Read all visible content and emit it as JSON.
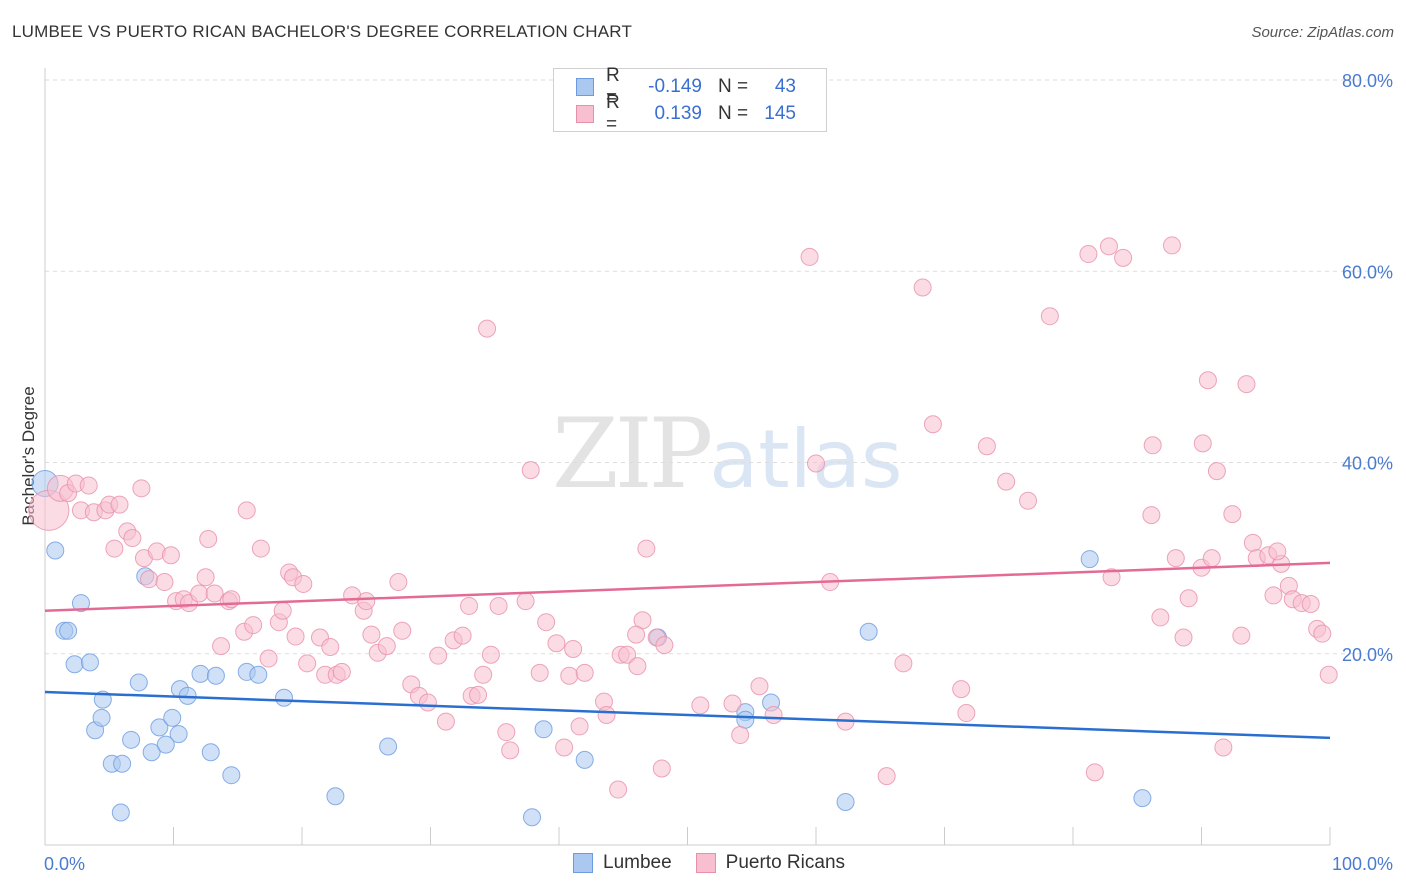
{
  "title": "LUMBEE VS PUERTO RICAN BACHELOR'S DEGREE CORRELATION CHART",
  "source": "Source: ZipAtlas.com",
  "watermark": {
    "zip": "ZIP",
    "atlas": "atlas"
  },
  "legend_top": {
    "rows": [
      {
        "r_label": "R =",
        "r_value": "-0.149",
        "n_label": "N =",
        "n_value": "43",
        "color": "#aac8f0",
        "border": "#6c9be0"
      },
      {
        "r_label": "R =",
        "r_value": "0.139",
        "n_label": "N =",
        "n_value": "145",
        "color": "#f8bfd0",
        "border": "#e890aa"
      }
    ]
  },
  "legend_bottom": [
    {
      "label": "Lumbee",
      "color": "#aac8f0",
      "border": "#6c9be0"
    },
    {
      "label": "Puerto Ricans",
      "color": "#f8bfd0",
      "border": "#e890aa"
    }
  ],
  "chart_data": {
    "type": "scatter",
    "title": "LUMBEE VS PUERTO RICAN BACHELOR'S DEGREE CORRELATION CHART",
    "xlabel": "",
    "ylabel": "Bachelor's Degree",
    "xlim": [
      0,
      100
    ],
    "ylim": [
      0,
      80
    ],
    "x_tick_labels": [
      "0.0%",
      "100.0%"
    ],
    "y_ticks": [
      20,
      40,
      60,
      80
    ],
    "y_tick_labels": [
      "20.0%",
      "40.0%",
      "60.0%",
      "80.0%"
    ],
    "grid": true,
    "legend": "top-center",
    "series": [
      {
        "name": "Lumbee",
        "color": "#6c9be0",
        "fill": "#aac8f0",
        "trend": {
          "x": [
            0,
            100
          ],
          "y": [
            16.0,
            11.2
          ]
        },
        "points": [
          [
            0.0,
            37.8,
            2
          ],
          [
            0.8,
            30.8,
            1
          ],
          [
            2.8,
            25.3,
            1
          ],
          [
            1.5,
            22.4,
            1
          ],
          [
            1.8,
            22.4,
            1
          ],
          [
            2.3,
            18.9,
            1
          ],
          [
            3.5,
            19.1,
            1
          ],
          [
            7.8,
            28.1,
            1
          ],
          [
            4.5,
            15.2,
            1
          ],
          [
            7.3,
            17.0,
            1
          ],
          [
            10.5,
            16.3,
            1
          ],
          [
            11.1,
            15.6,
            1
          ],
          [
            12.1,
            17.9,
            1
          ],
          [
            13.3,
            17.7,
            1
          ],
          [
            15.7,
            18.1,
            1
          ],
          [
            16.6,
            17.8,
            1
          ],
          [
            18.6,
            15.4,
            1
          ],
          [
            3.9,
            12.0,
            1
          ],
          [
            4.4,
            13.3,
            1
          ],
          [
            6.7,
            11.0,
            1
          ],
          [
            8.9,
            12.3,
            1
          ],
          [
            9.9,
            13.3,
            1
          ],
          [
            10.4,
            11.6,
            1
          ],
          [
            8.3,
            9.7,
            1
          ],
          [
            9.4,
            10.5,
            1
          ],
          [
            12.9,
            9.7,
            1
          ],
          [
            5.2,
            8.5,
            1
          ],
          [
            6.0,
            8.5,
            1
          ],
          [
            14.5,
            7.3,
            1
          ],
          [
            5.9,
            3.4,
            1
          ],
          [
            22.6,
            5.1,
            1
          ],
          [
            26.7,
            10.3,
            1
          ],
          [
            37.9,
            2.9,
            1
          ],
          [
            38.8,
            12.1,
            1
          ],
          [
            42.0,
            8.9,
            1
          ],
          [
            47.7,
            21.7,
            1
          ],
          [
            54.5,
            13.9,
            1
          ],
          [
            54.5,
            13.1,
            1
          ],
          [
            56.5,
            14.9,
            1
          ],
          [
            64.1,
            22.3,
            1
          ],
          [
            62.3,
            4.5,
            1
          ],
          [
            81.3,
            29.9,
            1
          ],
          [
            85.4,
            4.9,
            1
          ]
        ]
      },
      {
        "name": "Puerto Ricans",
        "color": "#e890aa",
        "fill": "#f8bfd0",
        "trend": {
          "x": [
            0,
            100
          ],
          "y": [
            24.5,
            29.5
          ]
        },
        "points": [
          [
            0.3,
            35.0,
            3
          ],
          [
            1.2,
            37.3,
            2
          ],
          [
            1.8,
            36.8,
            1
          ],
          [
            2.4,
            37.8,
            1
          ],
          [
            3.4,
            37.6,
            1
          ],
          [
            2.8,
            35.0,
            1
          ],
          [
            3.8,
            34.8,
            1
          ],
          [
            4.7,
            35.0,
            1
          ],
          [
            5.0,
            35.6,
            1
          ],
          [
            5.8,
            35.6,
            1
          ],
          [
            7.5,
            37.3,
            1
          ],
          [
            5.4,
            31.0,
            1
          ],
          [
            6.4,
            32.8,
            1
          ],
          [
            6.8,
            32.1,
            1
          ],
          [
            7.7,
            30.0,
            1
          ],
          [
            8.7,
            30.7,
            1
          ],
          [
            9.8,
            30.3,
            1
          ],
          [
            8.1,
            27.8,
            1
          ],
          [
            9.3,
            27.5,
            1
          ],
          [
            10.2,
            25.5,
            1
          ],
          [
            10.8,
            25.7,
            1
          ],
          [
            11.2,
            25.3,
            1
          ],
          [
            12.0,
            26.3,
            1
          ],
          [
            12.5,
            28.0,
            1
          ],
          [
            12.7,
            32.0,
            1
          ],
          [
            13.2,
            26.3,
            1
          ],
          [
            14.3,
            25.5,
            1
          ],
          [
            14.5,
            25.7,
            1
          ],
          [
            15.7,
            35.0,
            1
          ],
          [
            16.8,
            31.0,
            1
          ],
          [
            13.7,
            20.8,
            1
          ],
          [
            15.5,
            22.3,
            1
          ],
          [
            16.2,
            23.0,
            1
          ],
          [
            17.4,
            19.5,
            1
          ],
          [
            18.2,
            23.3,
            1
          ],
          [
            18.5,
            24.5,
            1
          ],
          [
            19.0,
            28.5,
            1
          ],
          [
            19.3,
            28.0,
            1
          ],
          [
            20.1,
            27.3,
            1
          ],
          [
            19.5,
            21.8,
            1
          ],
          [
            20.4,
            19.0,
            1
          ],
          [
            21.4,
            21.7,
            1
          ],
          [
            21.8,
            17.8,
            1
          ],
          [
            22.2,
            20.7,
            1
          ],
          [
            22.7,
            17.8,
            1
          ],
          [
            23.1,
            18.1,
            1
          ],
          [
            23.9,
            26.1,
            1
          ],
          [
            24.8,
            24.5,
            1
          ],
          [
            25.0,
            25.5,
            1
          ],
          [
            25.4,
            22.0,
            1
          ],
          [
            25.9,
            20.1,
            1
          ],
          [
            26.6,
            20.8,
            1
          ],
          [
            27.5,
            27.5,
            1
          ],
          [
            27.8,
            22.4,
            1
          ],
          [
            28.5,
            16.8,
            1
          ],
          [
            29.1,
            15.6,
            1
          ],
          [
            29.8,
            14.9,
            1
          ],
          [
            30.6,
            19.8,
            1
          ],
          [
            31.2,
            12.9,
            1
          ],
          [
            31.8,
            21.4,
            1
          ],
          [
            32.5,
            21.9,
            1
          ],
          [
            33.2,
            15.6,
            1
          ],
          [
            33.7,
            15.7,
            1
          ],
          [
            33.0,
            25.0,
            1
          ],
          [
            34.1,
            17.8,
            1
          ],
          [
            34.7,
            19.9,
            1
          ],
          [
            35.3,
            25.0,
            1
          ],
          [
            35.9,
            11.8,
            1
          ],
          [
            36.2,
            9.9,
            1
          ],
          [
            37.4,
            25.5,
            1
          ],
          [
            37.8,
            39.2,
            1
          ],
          [
            38.5,
            18.0,
            1
          ],
          [
            39.0,
            23.3,
            1
          ],
          [
            39.8,
            21.1,
            1
          ],
          [
            40.4,
            10.2,
            1
          ],
          [
            40.8,
            17.7,
            1
          ],
          [
            41.1,
            20.5,
            1
          ],
          [
            41.6,
            12.4,
            1
          ],
          [
            42.0,
            18.0,
            1
          ],
          [
            43.5,
            15.0,
            1
          ],
          [
            43.7,
            13.6,
            1
          ],
          [
            44.6,
            5.8,
            1
          ],
          [
            44.8,
            19.9,
            1
          ],
          [
            45.3,
            19.9,
            1
          ],
          [
            46.1,
            18.7,
            1
          ],
          [
            46.5,
            23.5,
            1
          ],
          [
            46.0,
            22.0,
            1
          ],
          [
            46.8,
            31.0,
            1
          ],
          [
            47.6,
            21.7,
            1
          ],
          [
            48.0,
            8.0,
            1
          ],
          [
            48.2,
            20.9,
            1
          ],
          [
            34.4,
            54.0,
            1
          ],
          [
            51.0,
            14.6,
            1
          ],
          [
            53.5,
            14.8,
            1
          ],
          [
            54.1,
            11.5,
            1
          ],
          [
            55.6,
            16.6,
            1
          ],
          [
            56.7,
            13.6,
            1
          ],
          [
            59.5,
            61.5,
            1
          ],
          [
            60.0,
            39.9,
            1
          ],
          [
            61.1,
            27.5,
            1
          ],
          [
            62.3,
            12.9,
            1
          ],
          [
            65.5,
            7.2,
            1
          ],
          [
            66.8,
            19.0,
            1
          ],
          [
            68.3,
            58.3,
            1
          ],
          [
            69.1,
            44.0,
            1
          ],
          [
            71.3,
            16.3,
            1
          ],
          [
            71.7,
            13.8,
            1
          ],
          [
            73.3,
            41.7,
            1
          ],
          [
            74.8,
            38.0,
            1
          ],
          [
            76.5,
            36.0,
            1
          ],
          [
            78.2,
            55.3,
            1
          ],
          [
            81.2,
            61.8,
            1
          ],
          [
            82.8,
            62.6,
            1
          ],
          [
            83.9,
            61.4,
            1
          ],
          [
            81.7,
            7.6,
            1
          ],
          [
            83.0,
            28.0,
            1
          ],
          [
            86.2,
            41.8,
            1
          ],
          [
            86.1,
            34.5,
            1
          ],
          [
            86.8,
            23.8,
            1
          ],
          [
            88.0,
            30.0,
            1
          ],
          [
            88.6,
            21.7,
            1
          ],
          [
            87.7,
            62.7,
            1
          ],
          [
            89.0,
            25.8,
            1
          ],
          [
            90.0,
            29.0,
            1
          ],
          [
            90.5,
            48.6,
            1
          ],
          [
            90.8,
            30.0,
            1
          ],
          [
            91.2,
            39.1,
            1
          ],
          [
            91.7,
            10.2,
            1
          ],
          [
            92.4,
            34.6,
            1
          ],
          [
            93.1,
            21.9,
            1
          ],
          [
            93.5,
            48.2,
            1
          ],
          [
            94.0,
            31.6,
            1
          ],
          [
            94.3,
            30.0,
            1
          ],
          [
            95.2,
            30.3,
            1
          ],
          [
            95.6,
            26.1,
            1
          ],
          [
            96.2,
            29.4,
            1
          ],
          [
            96.8,
            27.1,
            1
          ],
          [
            97.1,
            25.7,
            1
          ],
          [
            97.8,
            25.3,
            1
          ],
          [
            98.5,
            25.2,
            1
          ],
          [
            99.0,
            22.6,
            1
          ],
          [
            99.4,
            22.1,
            1
          ],
          [
            99.9,
            17.8,
            1
          ],
          [
            95.9,
            30.7,
            1
          ],
          [
            90.1,
            42.0,
            1
          ]
        ]
      }
    ]
  }
}
